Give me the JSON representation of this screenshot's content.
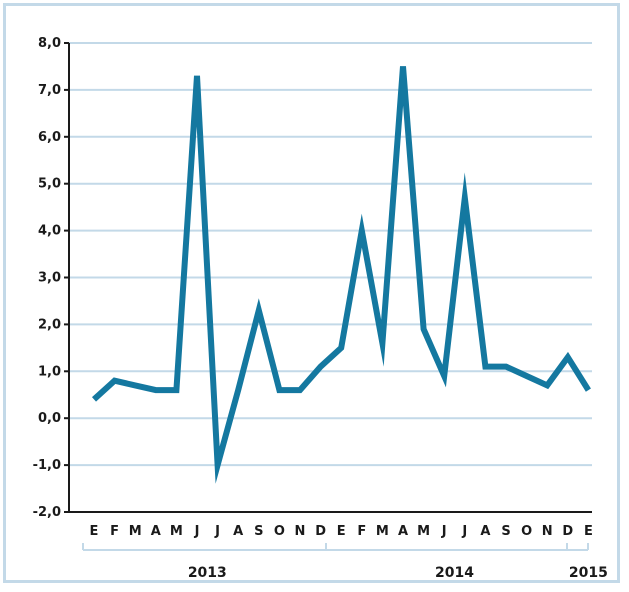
{
  "chart_data": {
    "type": "line",
    "title": "",
    "xlabel": "",
    "ylabel": "",
    "ylim": [
      -2.0,
      8.0
    ],
    "yticks": [
      "8,0",
      "7,0",
      "6,0",
      "5,0",
      "4,0",
      "3,0",
      "2,0",
      "1,0",
      "0,0",
      "-1,0",
      "-2,0"
    ],
    "ytick_values": [
      8,
      7,
      6,
      5,
      4,
      3,
      2,
      1,
      0,
      -1,
      -2
    ],
    "grid": true,
    "months": [
      "E",
      "F",
      "M",
      "A",
      "M",
      "J",
      "J",
      "A",
      "S",
      "O",
      "N",
      "D",
      "E",
      "F",
      "M",
      "A",
      "M",
      "J",
      "J",
      "A",
      "S",
      "O",
      "N",
      "D",
      "E"
    ],
    "years": [
      {
        "label": "2013",
        "start": 0,
        "end": 11
      },
      {
        "label": "2014",
        "start": 12,
        "end": 23
      },
      {
        "label": "2015",
        "start": 24,
        "end": 24
      }
    ],
    "series": [
      {
        "color": "#1478a0",
        "values": [
          0.4,
          0.8,
          0.7,
          0.6,
          0.6,
          7.3,
          -1.0,
          0.6,
          2.3,
          0.6,
          0.6,
          1.1,
          1.5,
          4.0,
          1.6,
          7.5,
          1.9,
          0.9,
          4.7,
          1.1,
          1.1,
          0.9,
          0.7,
          1.3,
          0.6
        ]
      }
    ],
    "gridline_color": "#c3d9e8",
    "axis_color": "#1a1a1a"
  }
}
